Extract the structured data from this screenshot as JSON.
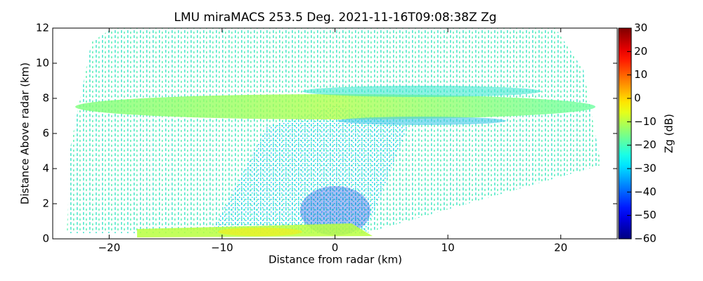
{
  "chart_data": {
    "type": "heatmap",
    "title": "LMU miraMACS 253.5 Deg. 2021-11-16T09:08:38Z  Zg",
    "xlabel": "Distance from radar (km)",
    "ylabel": "Distance Above radar  (km)",
    "xlim": [
      -25,
      25
    ],
    "xticks": [
      {
        "value": -20,
        "label": "−20"
      },
      {
        "value": -10,
        "label": "−10"
      },
      0,
      10,
      20
    ],
    "ylim": [
      0,
      12
    ],
    "yticks": [
      0,
      2,
      4,
      6,
      8,
      10,
      12
    ],
    "colorbar": {
      "label": "Zg (dB)",
      "colormap": "jet",
      "lim": [
        -60,
        30
      ],
      "ticks": [
        {
          "value": -60,
          "label": "−60"
        },
        {
          "value": -50,
          "label": "−50"
        },
        {
          "value": -40,
          "label": "−40"
        },
        {
          "value": -30,
          "label": "−30"
        },
        {
          "value": -20,
          "label": "−20"
        },
        {
          "value": -10,
          "label": "−10"
        },
        0,
        10,
        20,
        30
      ]
    }
  }
}
